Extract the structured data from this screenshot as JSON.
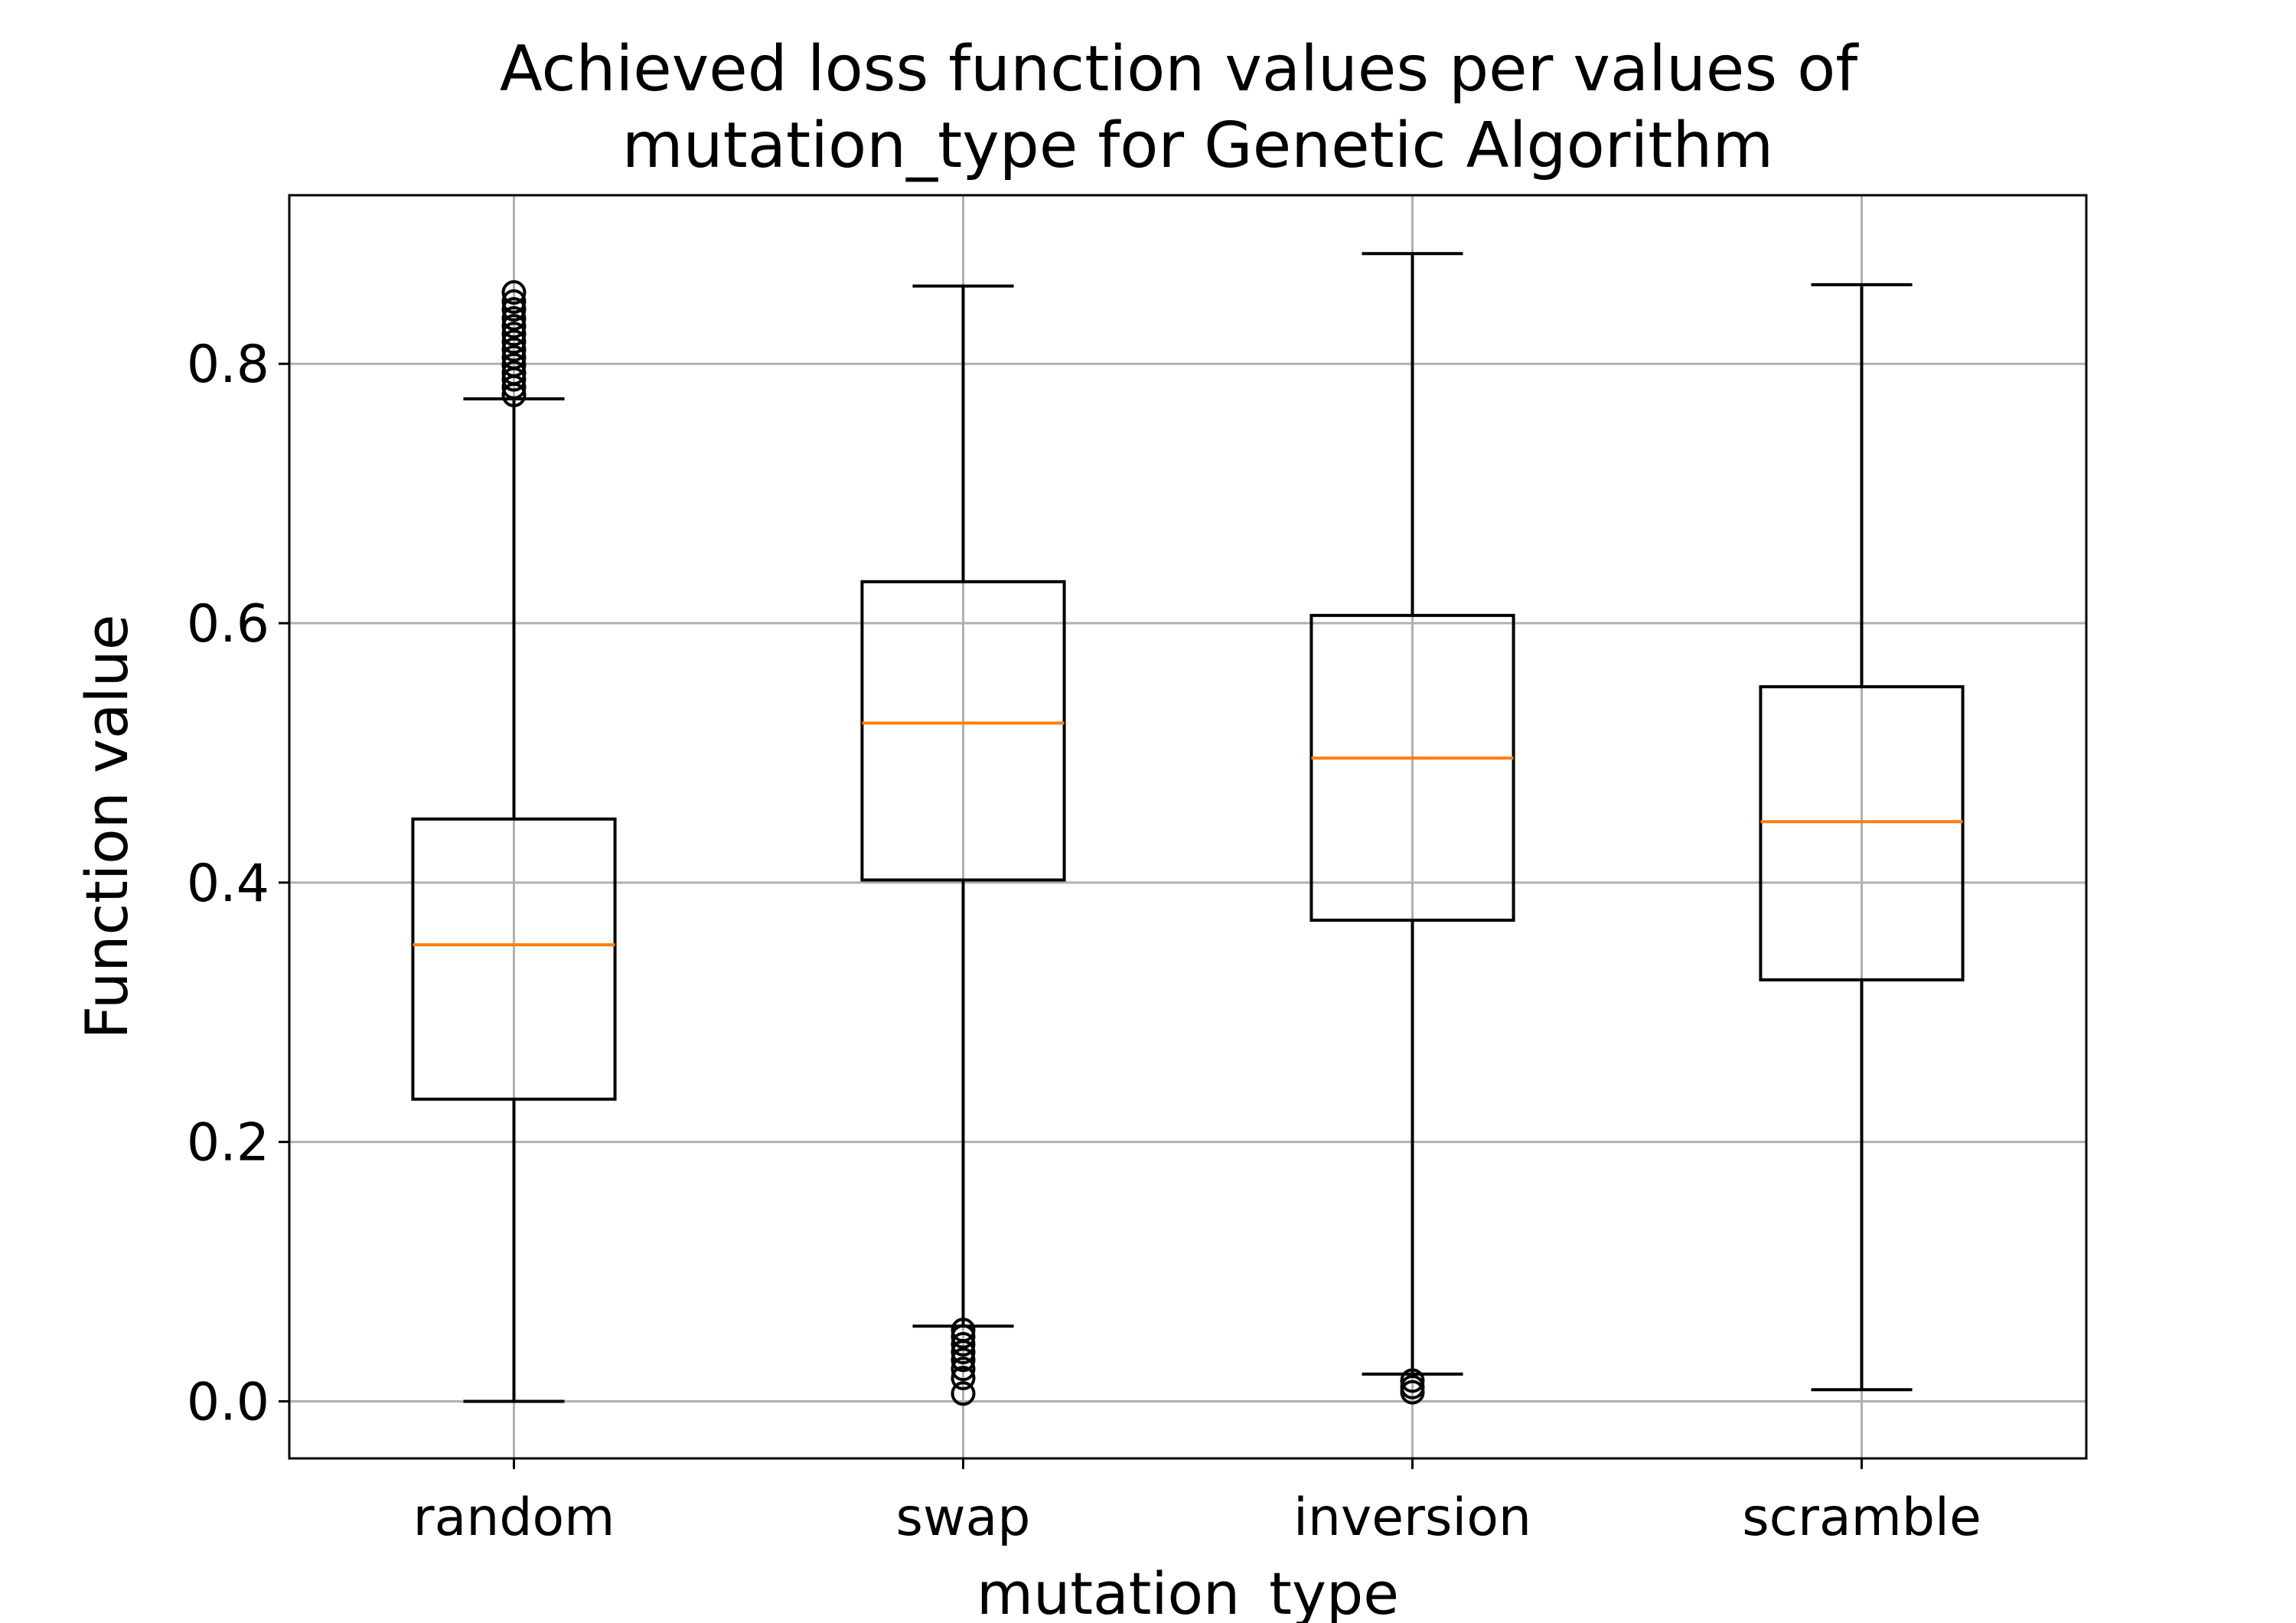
{
  "chart_data": {
    "type": "box",
    "title_lines": [
      "Achieved loss function values per values of",
      "mutation_type for Genetic Algorithm"
    ],
    "xlabel": "mutation_type",
    "ylabel": "Function value",
    "ylim": [
      -0.044,
      0.93
    ],
    "yticks": [
      0.0,
      0.2,
      0.4,
      0.6,
      0.8
    ],
    "ytick_labels": [
      "0.0",
      "0.2",
      "0.4",
      "0.6",
      "0.8"
    ],
    "grid": true,
    "colors": {
      "box": "#000000",
      "median": "#ff7f0e",
      "grid": "#b0b0b0"
    },
    "categories": [
      "random",
      "swap",
      "inversion",
      "scramble"
    ],
    "boxes": [
      {
        "category": "random",
        "whisker_low": 0.0,
        "q1": 0.233,
        "median": 0.352,
        "q3": 0.449,
        "whisker_high": 0.773,
        "outliers": [
          0.776,
          0.782,
          0.788,
          0.793,
          0.799,
          0.805,
          0.811,
          0.817,
          0.823,
          0.829,
          0.835,
          0.842,
          0.848,
          0.855
        ]
      },
      {
        "category": "swap",
        "whisker_low": 0.058,
        "q1": 0.402,
        "median": 0.523,
        "q3": 0.632,
        "whisker_high": 0.86,
        "outliers": [
          0.006,
          0.018,
          0.025,
          0.032,
          0.038,
          0.044,
          0.05,
          0.055
        ]
      },
      {
        "category": "inversion",
        "whisker_low": 0.021,
        "q1": 0.371,
        "median": 0.496,
        "q3": 0.606,
        "whisker_high": 0.885,
        "outliers": [
          0.007,
          0.011,
          0.016
        ]
      },
      {
        "category": "scramble",
        "whisker_low": 0.009,
        "q1": 0.325,
        "median": 0.447,
        "q3": 0.551,
        "whisker_high": 0.861,
        "outliers": []
      }
    ]
  }
}
